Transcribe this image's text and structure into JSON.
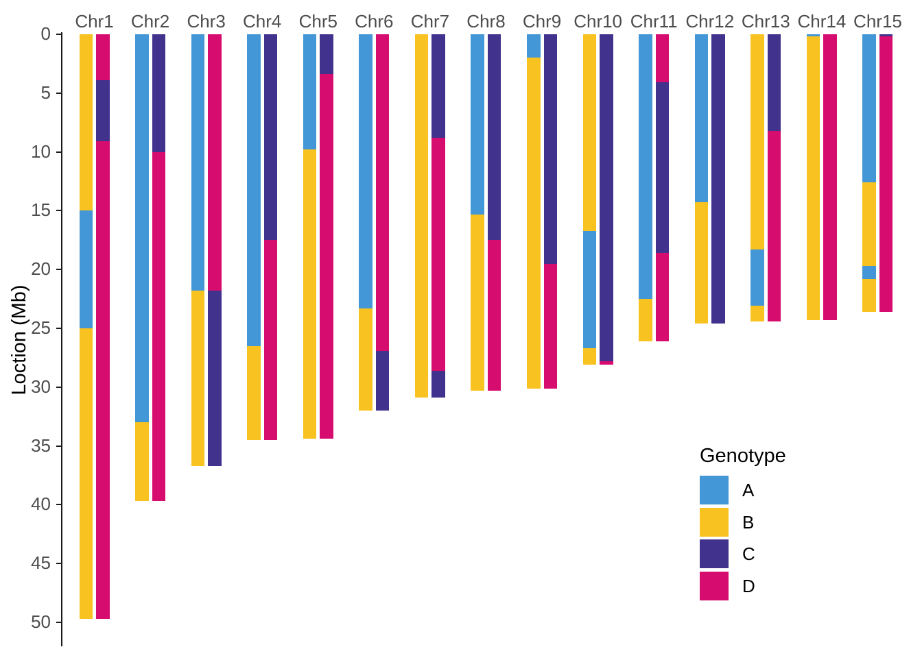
{
  "y_axis": {
    "label": "Loction (Mb)",
    "ticks": [
      0,
      5,
      10,
      15,
      20,
      25,
      30,
      35,
      40,
      45,
      50
    ]
  },
  "legend": {
    "title": "Genotype",
    "entries": [
      {
        "label": "A",
        "color": "#4397D6"
      },
      {
        "label": "B",
        "color": "#F8C221"
      },
      {
        "label": "C",
        "color": "#41328D"
      },
      {
        "label": "D",
        "color": "#D60C6F"
      }
    ]
  },
  "chart_data": {
    "type": "bar",
    "subtype": "paired-stacked-segment-columns",
    "title": "",
    "xlabel": "",
    "ylabel": "Loction (Mb)",
    "ylim": [
      0,
      52
    ],
    "y_ticks": [
      0,
      5,
      10,
      15,
      20,
      25,
      30,
      35,
      40,
      45,
      50
    ],
    "y_axis_inverted": true,
    "grid": false,
    "legend_position": "right-lower",
    "genotype_colors": {
      "A": "#4397D6",
      "B": "#F8C221",
      "C": "#41328D",
      "D": "#D60C6F"
    },
    "categories": [
      "Chr1",
      "Chr2",
      "Chr3",
      "Chr4",
      "Chr5",
      "Chr6",
      "Chr7",
      "Chr8",
      "Chr9",
      "Chr10",
      "Chr11",
      "Chr12",
      "Chr13",
      "Chr14",
      "Chr15"
    ],
    "units": "Mb",
    "chromosomes": [
      {
        "name": "Chr1",
        "haplotype1": [
          {
            "genotype": "B",
            "start": 0,
            "end": 15.0
          },
          {
            "genotype": "A",
            "start": 15.0,
            "end": 25.0
          },
          {
            "genotype": "B",
            "start": 25.0,
            "end": 49.7
          }
        ],
        "haplotype2": [
          {
            "genotype": "D",
            "start": 0,
            "end": 3.9
          },
          {
            "genotype": "C",
            "start": 3.9,
            "end": 9.1
          },
          {
            "genotype": "D",
            "start": 9.1,
            "end": 49.7
          }
        ]
      },
      {
        "name": "Chr2",
        "haplotype1": [
          {
            "genotype": "A",
            "start": 0,
            "end": 33.0
          },
          {
            "genotype": "B",
            "start": 33.0,
            "end": 39.7
          }
        ],
        "haplotype2": [
          {
            "genotype": "C",
            "start": 0,
            "end": 10.0
          },
          {
            "genotype": "D",
            "start": 10.0,
            "end": 39.7
          }
        ]
      },
      {
        "name": "Chr3",
        "haplotype1": [
          {
            "genotype": "A",
            "start": 0,
            "end": 21.8
          },
          {
            "genotype": "B",
            "start": 21.8,
            "end": 36.7
          }
        ],
        "haplotype2": [
          {
            "genotype": "D",
            "start": 0,
            "end": 21.8
          },
          {
            "genotype": "C",
            "start": 21.8,
            "end": 36.7
          }
        ]
      },
      {
        "name": "Chr4",
        "haplotype1": [
          {
            "genotype": "A",
            "start": 0,
            "end": 26.5
          },
          {
            "genotype": "B",
            "start": 26.5,
            "end": 34.5
          }
        ],
        "haplotype2": [
          {
            "genotype": "C",
            "start": 0,
            "end": 17.5
          },
          {
            "genotype": "D",
            "start": 17.5,
            "end": 34.5
          }
        ]
      },
      {
        "name": "Chr5",
        "haplotype1": [
          {
            "genotype": "A",
            "start": 0,
            "end": 9.8
          },
          {
            "genotype": "B",
            "start": 9.8,
            "end": 34.4
          }
        ],
        "haplotype2": [
          {
            "genotype": "C",
            "start": 0,
            "end": 3.4
          },
          {
            "genotype": "D",
            "start": 3.4,
            "end": 34.4
          }
        ]
      },
      {
        "name": "Chr6",
        "haplotype1": [
          {
            "genotype": "A",
            "start": 0,
            "end": 23.3
          },
          {
            "genotype": "B",
            "start": 23.3,
            "end": 32.0
          }
        ],
        "haplotype2": [
          {
            "genotype": "D",
            "start": 0,
            "end": 26.9
          },
          {
            "genotype": "C",
            "start": 26.9,
            "end": 32.0
          }
        ]
      },
      {
        "name": "Chr7",
        "haplotype1": [
          {
            "genotype": "B",
            "start": 0,
            "end": 30.9
          }
        ],
        "haplotype2": [
          {
            "genotype": "C",
            "start": 0,
            "end": 8.8
          },
          {
            "genotype": "D",
            "start": 8.8,
            "end": 28.6
          },
          {
            "genotype": "C",
            "start": 28.6,
            "end": 30.9
          }
        ]
      },
      {
        "name": "Chr8",
        "haplotype1": [
          {
            "genotype": "A",
            "start": 0,
            "end": 15.3
          },
          {
            "genotype": "B",
            "start": 15.3,
            "end": 30.3
          }
        ],
        "haplotype2": [
          {
            "genotype": "C",
            "start": 0,
            "end": 17.5
          },
          {
            "genotype": "D",
            "start": 17.5,
            "end": 30.3
          }
        ]
      },
      {
        "name": "Chr9",
        "haplotype1": [
          {
            "genotype": "A",
            "start": 0,
            "end": 2.0
          },
          {
            "genotype": "B",
            "start": 2.0,
            "end": 30.1
          }
        ],
        "haplotype2": [
          {
            "genotype": "C",
            "start": 0,
            "end": 19.5
          },
          {
            "genotype": "D",
            "start": 19.5,
            "end": 30.1
          }
        ]
      },
      {
        "name": "Chr10",
        "haplotype1": [
          {
            "genotype": "B",
            "start": 0,
            "end": 16.7
          },
          {
            "genotype": "A",
            "start": 16.7,
            "end": 26.7
          },
          {
            "genotype": "B",
            "start": 26.7,
            "end": 28.1
          }
        ],
        "haplotype2": [
          {
            "genotype": "C",
            "start": 0,
            "end": 27.8
          },
          {
            "genotype": "D",
            "start": 27.8,
            "end": 28.1
          }
        ]
      },
      {
        "name": "Chr11",
        "haplotype1": [
          {
            "genotype": "A",
            "start": 0,
            "end": 22.5
          },
          {
            "genotype": "B",
            "start": 22.5,
            "end": 26.1
          }
        ],
        "haplotype2": [
          {
            "genotype": "D",
            "start": 0,
            "end": 4.1
          },
          {
            "genotype": "C",
            "start": 4.1,
            "end": 18.6
          },
          {
            "genotype": "D",
            "start": 18.6,
            "end": 26.1
          }
        ]
      },
      {
        "name": "Chr12",
        "haplotype1": [
          {
            "genotype": "A",
            "start": 0,
            "end": 14.3
          },
          {
            "genotype": "B",
            "start": 14.3,
            "end": 24.6
          }
        ],
        "haplotype2": [
          {
            "genotype": "C",
            "start": 0,
            "end": 24.6
          }
        ]
      },
      {
        "name": "Chr13",
        "haplotype1": [
          {
            "genotype": "B",
            "start": 0,
            "end": 18.3
          },
          {
            "genotype": "A",
            "start": 18.3,
            "end": 23.1
          },
          {
            "genotype": "B",
            "start": 23.1,
            "end": 24.4
          }
        ],
        "haplotype2": [
          {
            "genotype": "C",
            "start": 0,
            "end": 8.2
          },
          {
            "genotype": "D",
            "start": 8.2,
            "end": 24.4
          }
        ]
      },
      {
        "name": "Chr14",
        "haplotype1": [
          {
            "genotype": "A",
            "start": 0,
            "end": 0.2
          },
          {
            "genotype": "B",
            "start": 0.2,
            "end": 24.3
          }
        ],
        "haplotype2": [
          {
            "genotype": "D",
            "start": 0,
            "end": 24.3
          }
        ]
      },
      {
        "name": "Chr15",
        "haplotype1": [
          {
            "genotype": "A",
            "start": 0,
            "end": 12.6
          },
          {
            "genotype": "B",
            "start": 12.6,
            "end": 19.7
          },
          {
            "genotype": "A",
            "start": 19.7,
            "end": 20.8
          },
          {
            "genotype": "B",
            "start": 20.8,
            "end": 23.6
          }
        ],
        "haplotype2": [
          {
            "genotype": "C",
            "start": 0,
            "end": 0.2
          },
          {
            "genotype": "D",
            "start": 0.2,
            "end": 23.6
          }
        ]
      }
    ]
  }
}
